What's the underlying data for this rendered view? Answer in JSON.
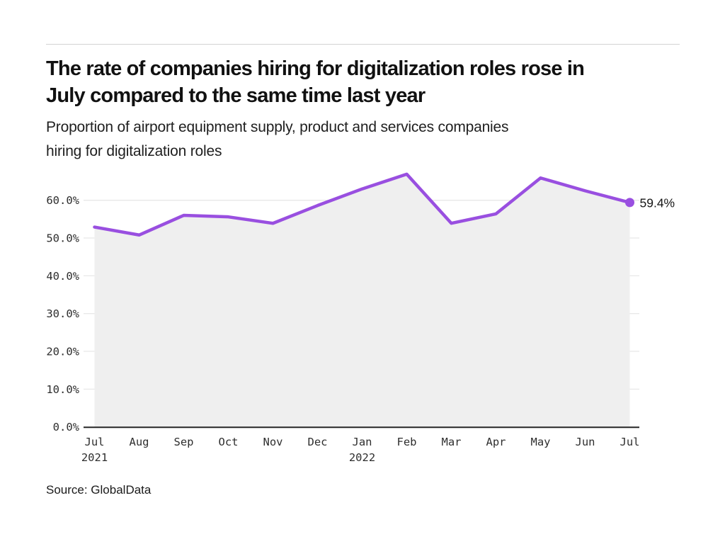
{
  "header": {
    "title_lines": [
      "The rate of companies hiring for digitalization roles rose in",
      "July compared to the same time last year"
    ],
    "subtitle_lines": [
      "Proportion of airport equipment supply, product and services companies",
      "hiring for digitalization roles"
    ]
  },
  "footer": {
    "source": "Source: GlobalData"
  },
  "chart_data": {
    "type": "area",
    "title": "Proportion of airport equipment supply, product and services companies hiring for digitalization roles",
    "xlabel": "",
    "ylabel": "",
    "categories": [
      "Jul",
      "Aug",
      "Sep",
      "Oct",
      "Nov",
      "Dec",
      "Jan",
      "Feb",
      "Mar",
      "Apr",
      "May",
      "Jun",
      "Jul"
    ],
    "year_marks": [
      {
        "index": 0,
        "label": "2021"
      },
      {
        "index": 6,
        "label": "2022"
      }
    ],
    "values": [
      52.9,
      50.8,
      56.0,
      55.6,
      53.9,
      58.6,
      63.0,
      66.9,
      53.9,
      56.4,
      65.9,
      62.5,
      59.4
    ],
    "end_point_label": "59.4%",
    "y_tick_values": [
      0,
      10,
      20,
      30,
      40,
      50,
      60
    ],
    "y_tick_labels": [
      "0.0%",
      "10.0%",
      "20.0%",
      "30.0%",
      "40.0%",
      "50.0%",
      "60.0%"
    ],
    "ylim": [
      0,
      70
    ],
    "grid": true,
    "legend": false,
    "colors": {
      "line": "#994FE0",
      "end_dot": "#994FE0",
      "area_fill": "#efefef",
      "gridline": "#e8e8e8",
      "axis_line": "#262626",
      "tick_text": "#2e2e2e",
      "annotation_text": "#161616"
    }
  }
}
